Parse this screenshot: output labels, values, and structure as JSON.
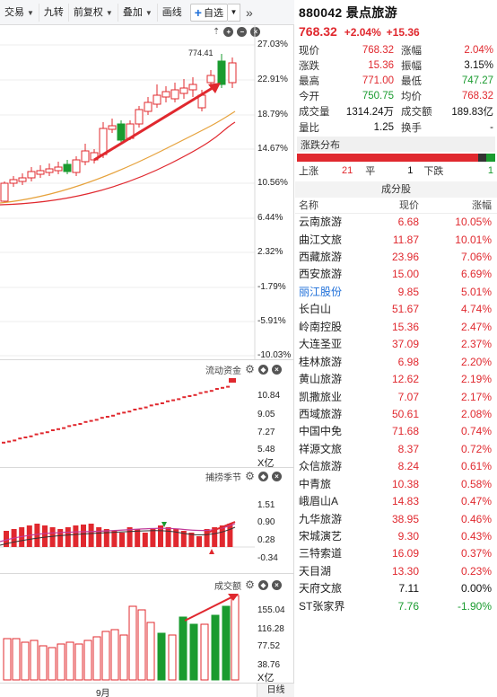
{
  "toolbar": {
    "trade": "交易",
    "nine_turn": "九转",
    "adjust": "前复权",
    "overlay": "叠加",
    "draw": "画线",
    "add_watch": "自选",
    "expand": "»"
  },
  "main_chart": {
    "pct_ticks": [
      "27.03%",
      "22.91%",
      "18.79%",
      "14.67%",
      "10.56%",
      "6.44%",
      "2.32%",
      "-1.79%",
      "-5.91%",
      "-10.03%"
    ],
    "high_marker": "774.41"
  },
  "flow_pane": {
    "title": "流动资金",
    "ticks": [
      "10.84",
      "9.05",
      "7.27",
      "5.48"
    ],
    "unit": "X亿"
  },
  "season_pane": {
    "title": "捕捞季节",
    "ticks": [
      "1.51",
      "0.90",
      "0.28",
      "-0.34"
    ]
  },
  "volume_pane": {
    "title": "成交额",
    "ticks": [
      "155.04",
      "116.28",
      "77.52",
      "38.76"
    ],
    "unit": "X亿"
  },
  "bottom": {
    "month": "9月",
    "period_tab": "日线"
  },
  "stock": {
    "code_name": "880042 景点旅游",
    "price": "768.32",
    "pct": "+2.04%",
    "chg": "+15.36"
  },
  "quote": [
    {
      "k1": "现价",
      "v1": "768.32",
      "c1": "red",
      "k2": "涨幅",
      "v2": "2.04%",
      "c2": "red"
    },
    {
      "k1": "涨跌",
      "v1": "15.36",
      "c1": "red",
      "k2": "振幅",
      "v2": "3.15%",
      "c2": "black"
    },
    {
      "k1": "最高",
      "v1": "771.00",
      "c1": "red",
      "k2": "最低",
      "v2": "747.27",
      "c2": "green"
    },
    {
      "k1": "今开",
      "v1": "750.75",
      "c1": "green",
      "k2": "均价",
      "v2": "768.32",
      "c2": "red"
    },
    {
      "k1": "成交量",
      "v1": "1314.24万",
      "c1": "black",
      "k2": "成交额",
      "v2": "189.83亿",
      "c2": "black"
    },
    {
      "k1": "量比",
      "v1": "1.25",
      "c1": "black",
      "k2": "换手",
      "v2": "-",
      "c2": "black"
    }
  ],
  "distribution": {
    "title": "涨跌分布",
    "up_label": "上涨",
    "up_count": "21",
    "flat_label": "平",
    "flat_count": "1",
    "down_label": "下跌",
    "down_count": "1",
    "colors": {
      "up": "#e0282e",
      "flat": "#333333",
      "down": "#1a9b2f"
    }
  },
  "components": {
    "title": "成分股",
    "headers": {
      "name": "名称",
      "price": "现价",
      "change": "涨幅"
    },
    "rows": [
      {
        "name": "云南旅游",
        "price": "6.68",
        "change": "10.05%",
        "color": "red"
      },
      {
        "name": "曲江文旅",
        "price": "11.87",
        "change": "10.01%",
        "color": "red"
      },
      {
        "name": "西藏旅游",
        "price": "23.96",
        "change": "7.06%",
        "color": "red"
      },
      {
        "name": "西安旅游",
        "price": "15.00",
        "change": "6.69%",
        "color": "red"
      },
      {
        "name": "丽江股份",
        "price": "9.85",
        "change": "5.01%",
        "color": "red",
        "link": true
      },
      {
        "name": "长白山",
        "price": "51.67",
        "change": "4.74%",
        "color": "red"
      },
      {
        "name": "岭南控股",
        "price": "15.36",
        "change": "2.47%",
        "color": "red"
      },
      {
        "name": "大连圣亚",
        "price": "37.09",
        "change": "2.37%",
        "color": "red"
      },
      {
        "name": "桂林旅游",
        "price": "6.98",
        "change": "2.20%",
        "color": "red"
      },
      {
        "name": "黄山旅游",
        "price": "12.62",
        "change": "2.19%",
        "color": "red"
      },
      {
        "name": "凯撒旅业",
        "price": "7.07",
        "change": "2.17%",
        "color": "red"
      },
      {
        "name": "西域旅游",
        "price": "50.61",
        "change": "2.08%",
        "color": "red"
      },
      {
        "name": "中国中免",
        "price": "71.68",
        "change": "0.74%",
        "color": "red"
      },
      {
        "name": "祥源文旅",
        "price": "8.37",
        "change": "0.72%",
        "color": "red"
      },
      {
        "name": "众信旅游",
        "price": "8.24",
        "change": "0.61%",
        "color": "red"
      },
      {
        "name": "中青旅",
        "price": "10.38",
        "change": "0.58%",
        "color": "red"
      },
      {
        "name": "峨眉山A",
        "price": "14.83",
        "change": "0.47%",
        "color": "red"
      },
      {
        "name": "九华旅游",
        "price": "38.95",
        "change": "0.46%",
        "color": "red"
      },
      {
        "name": "宋城演艺",
        "price": "9.30",
        "change": "0.43%",
        "color": "red"
      },
      {
        "name": "三特索道",
        "price": "16.09",
        "change": "0.37%",
        "color": "red"
      },
      {
        "name": "天目湖",
        "price": "13.30",
        "change": "0.23%",
        "color": "red"
      },
      {
        "name": "天府文旅",
        "price": "7.11",
        "change": "0.00%",
        "color": "black"
      },
      {
        "name": "ST张家界",
        "price": "7.76",
        "change": "-1.90%",
        "color": "green"
      }
    ]
  },
  "colors": {
    "up": "#e0282e",
    "down": "#1a9b2f",
    "link": "#1e6fd9",
    "ma1": "#e6a23c",
    "ma2": "#e0282e"
  }
}
